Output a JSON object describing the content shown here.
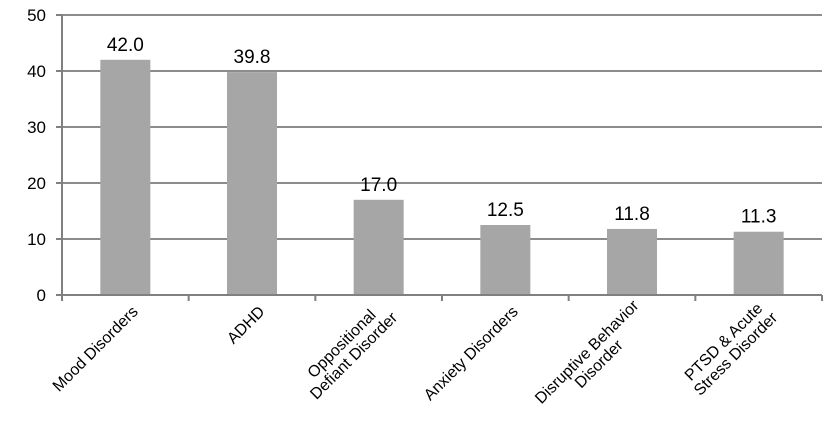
{
  "chart_data": {
    "type": "bar",
    "categories": [
      [
        "Mood Disorders"
      ],
      [
        "ADHD"
      ],
      [
        "Oppositional",
        "Defiant Disorder"
      ],
      [
        "Anxiety Disorders"
      ],
      [
        "Disruptive Behavior",
        "Disorder"
      ],
      [
        "PTSD & Acute",
        "Stress Disorder"
      ]
    ],
    "values": [
      42.0,
      39.8,
      17.0,
      12.5,
      11.8,
      11.3
    ],
    "value_labels": [
      "42.0",
      "39.8",
      "17.0",
      "12.5",
      "11.8",
      "11.3"
    ],
    "ylim": [
      0,
      50
    ],
    "yticks": [
      0,
      10,
      20,
      30,
      40,
      50
    ],
    "grid": true,
    "legend": "none",
    "colors": {
      "bar": "#a6a6a6",
      "grid": "#8c8c8c",
      "axis": "#808080"
    }
  }
}
